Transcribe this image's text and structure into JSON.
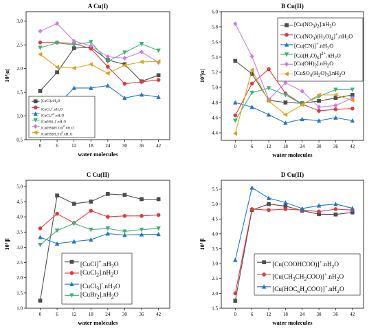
{
  "chart_data": [
    {
      "id": "A",
      "type": "line",
      "title": "A Cu(I)",
      "xlabel": "water molecules",
      "ylabel": "10³|α|",
      "x": [
        0,
        6,
        12,
        18,
        24,
        30,
        36,
        42
      ],
      "ylim": [
        0.5,
        3.2
      ],
      "yticks": [
        0.5,
        1.0,
        1.5,
        2.0,
        2.5,
        3.0
      ],
      "legend_position": "lower-left",
      "series": [
        {
          "name": "[CuCl].nH2O",
          "label_html": "[CuCl].nH<sub>2</sub>O",
          "color": "#4d4d4d",
          "marker": "square",
          "values": [
            1.53,
            1.92,
            2.43,
            2.45,
            2.18,
            2.09,
            1.73,
            1.86
          ]
        },
        {
          "name": "[CuCl2]-.nH2O",
          "label_html": "[CuCl<sub>2</sub>]<sup>-</sup>.nH<sub>2</sub>O",
          "color": "#e0393e",
          "marker": "circle",
          "values": [
            2.55,
            2.55,
            2.53,
            2.42,
            2.04,
            1.68,
            1.72,
            1.76
          ]
        },
        {
          "name": "[CuCl3]2-.nH2O",
          "label_html": "[CuCl<sub>3</sub>]<sup>2-</sup>.nH<sub>2</sub>O",
          "color": "#1f77c4",
          "marker": "triangle-up",
          "values": [
            0.85,
            1.22,
            1.59,
            1.59,
            1.64,
            1.38,
            1.45,
            1.4
          ]
        },
        {
          "name": "[Cu(HS)2]-.nH2O",
          "label_html": "[Cu(HS)<sub>2</sub>]<sup>-</sup>.nH<sub>2</sub>O",
          "color": "#3cb371",
          "marker": "triangle-down",
          "values": [
            2.44,
            2.54,
            2.5,
            2.56,
            2.15,
            2.34,
            2.52,
            2.38
          ]
        },
        {
          "name": "[Cu(HS)(H2O)]0.nH2O",
          "label_html": "[Cu(HS)(H<sub>2</sub>O)]<sup>0</sup>.nH<sub>2</sub>O",
          "color": "#c77ce8",
          "marker": "diamond",
          "values": [
            2.79,
            2.95,
            2.58,
            2.48,
            2.25,
            2.22,
            2.35,
            2.13
          ]
        },
        {
          "name": "[Cu(HS)H2S)]0.nH2O",
          "label_html": "[Cu(HS)H<sub>2</sub>S)]<sup>0</sup>.nH<sub>2</sub>O",
          "color": "#d9a21b",
          "marker": "triangle-left",
          "values": [
            2.3,
            2.03,
            2.01,
            2.09,
            1.9,
            2.07,
            2.14,
            2.15
          ]
        }
      ]
    },
    {
      "id": "B",
      "type": "line",
      "title": "B Cu(II)",
      "xlabel": "water molecules",
      "ylabel": "10³|α|",
      "x": [
        0,
        6,
        12,
        18,
        24,
        30,
        36,
        42
      ],
      "ylim": [
        4.3,
        6.0
      ],
      "yticks": [
        4.4,
        4.6,
        4.8,
        5.0,
        5.2,
        5.4,
        5.6,
        5.8,
        6.0
      ],
      "legend_position": "top-right",
      "series": [
        {
          "name": "[Cu(NO3)2].nH2O",
          "label_html": "[Cu(NO<sub>3</sub>)<sub>2</sub>].nH<sub>2</sub>O",
          "color": "#4d4d4d",
          "marker": "square",
          "values": [
            5.35,
            5.18,
            4.83,
            4.8,
            4.79,
            4.82,
            4.86,
            4.9
          ]
        },
        {
          "name": "[Cu(NO3)(H2O)4]+.nH2O",
          "label_html": "[Cu(NO<sub>3</sub>)(H<sub>2</sub>O)<sub>4</sub>]<sup>+</sup>.nH<sub>2</sub>O",
          "color": "#e0393e",
          "marker": "circle",
          "values": [
            4.63,
            5.05,
            5.24,
            4.92,
            4.78,
            4.69,
            4.71,
            4.72
          ]
        },
        {
          "name": "[Cu(CN)]+.nH2O",
          "label_html": "[Cu(CN)]<sup>+</sup>.nH<sub>2</sub>O",
          "color": "#1f77c4",
          "marker": "triangle-up",
          "values": [
            4.8,
            4.74,
            4.64,
            4.53,
            4.58,
            4.56,
            4.6,
            4.56
          ]
        },
        {
          "name": "[Cu(H2O)6]2+.nH2O",
          "label_html": "[Cu(H<sub>2</sub>O)<sub>6</sub>]<sup>2+</sup>.nH<sub>2</sub>O",
          "color": "#3cb371",
          "marker": "triangle-down",
          "values": [
            4.56,
            4.93,
            4.99,
            4.9,
            4.78,
            4.88,
            4.97,
            4.97
          ]
        },
        {
          "name": "[Cu(OH)2].nH2O",
          "label_html": "[Cu(OH)<sub>2</sub>].nH<sub>2</sub>O",
          "color": "#c77ce8",
          "marker": "diamond",
          "values": [
            5.84,
            5.41,
            4.84,
            5.06,
            4.95,
            4.74,
            4.76,
            4.86
          ]
        },
        {
          "name": "[CuSO4(H2O)3].nH2O",
          "label_html": "[CuSO<sub>4</sub>(H<sub>2</sub>O)<sub>3</sub>].nH<sub>2</sub>O",
          "color": "#d9a21b",
          "marker": "triangle-left",
          "values": [
            4.39,
            5.23,
            4.82,
            4.64,
            4.77,
            4.9,
            4.9,
            4.83
          ]
        }
      ]
    },
    {
      "id": "C",
      "type": "line",
      "title": "C Cu(II)",
      "xlabel": "water molecules",
      "ylabel": "10³|β",
      "x": [
        0,
        6,
        12,
        18,
        24,
        30,
        36,
        42
      ],
      "ylim": [
        1.0,
        5.2
      ],
      "yticks": [
        1.0,
        1.5,
        2.0,
        2.5,
        3.0,
        3.5,
        4.0,
        4.5,
        5.0
      ],
      "legend_position": "lower-right",
      "series": [
        {
          "name": "[CuCl]+.nH2O",
          "label_html": "[CuCl]<sup>+</sup>.nH<sub>2</sub>O",
          "color": "#4d4d4d",
          "marker": "square",
          "values": [
            1.25,
            4.7,
            4.43,
            4.5,
            4.75,
            4.72,
            4.58,
            4.58
          ]
        },
        {
          "name": "[CuCl2].nH2O",
          "label_html": "[CuCl<sub>2</sub>].nH<sub>2</sub>O",
          "color": "#e0393e",
          "marker": "circle",
          "values": [
            3.62,
            4.1,
            3.8,
            4.2,
            4.0,
            4.03,
            4.03,
            4.06
          ]
        },
        {
          "name": "[CuCl3]-.nH2O",
          "label_html": "[CuCl<sub>3</sub>]<sup>-</sup>.nH<sub>2</sub>O",
          "color": "#1f77c4",
          "marker": "triangle-up",
          "values": [
            3.33,
            3.12,
            3.19,
            3.25,
            3.45,
            3.4,
            3.42,
            3.43
          ]
        },
        {
          "name": "[CuBr2].nH2O",
          "label_html": "[CuBr<sub>2</sub>].nH<sub>2</sub>O",
          "color": "#3cb371",
          "marker": "triangle-down",
          "values": [
            3.08,
            3.55,
            3.78,
            3.58,
            3.62,
            3.52,
            3.58,
            3.62
          ]
        }
      ]
    },
    {
      "id": "D",
      "type": "line",
      "title": "D Cu(II)",
      "xlabel": "water molecules",
      "ylabel": "10³|β",
      "x": [
        0,
        6,
        12,
        18,
        24,
        30,
        36,
        42
      ],
      "ylim": [
        1.5,
        5.8
      ],
      "yticks": [
        1.5,
        2.0,
        2.5,
        3.0,
        3.5,
        4.0,
        4.5,
        5.0,
        5.5
      ],
      "legend_position": "lower-right",
      "series": [
        {
          "name": "[Cu(COOHCOO)]+.nH2O",
          "label_html": "[Cu(COOHCOO)]<sup>+</sup>.nH<sub>2</sub>O",
          "color": "#4d4d4d",
          "marker": "square",
          "values": [
            1.75,
            4.8,
            5.0,
            4.93,
            4.78,
            4.66,
            4.65,
            4.72
          ]
        },
        {
          "name": "[Cu(CH3CH2COO)]+.nH2O",
          "label_html": "[Cu(CH<sub>3</sub>CH<sub>2</sub>COO)]<sup>+</sup>.nH<sub>2</sub>O",
          "color": "#e0393e",
          "marker": "circle",
          "values": [
            2.0,
            4.83,
            4.8,
            4.83,
            4.8,
            4.75,
            4.83,
            4.8
          ]
        },
        {
          "name": "[Cu(HOC6H4COO)]+.nH2O",
          "label_html": "[Cu(HOC<sub>6</sub>H<sub>4</sub>COO)]<sup>+</sup>.nH<sub>2</sub>O",
          "color": "#1f77c4",
          "marker": "triangle-up",
          "values": [
            3.12,
            5.55,
            5.2,
            5.05,
            4.85,
            4.95,
            5.0,
            4.86
          ]
        }
      ]
    }
  ]
}
